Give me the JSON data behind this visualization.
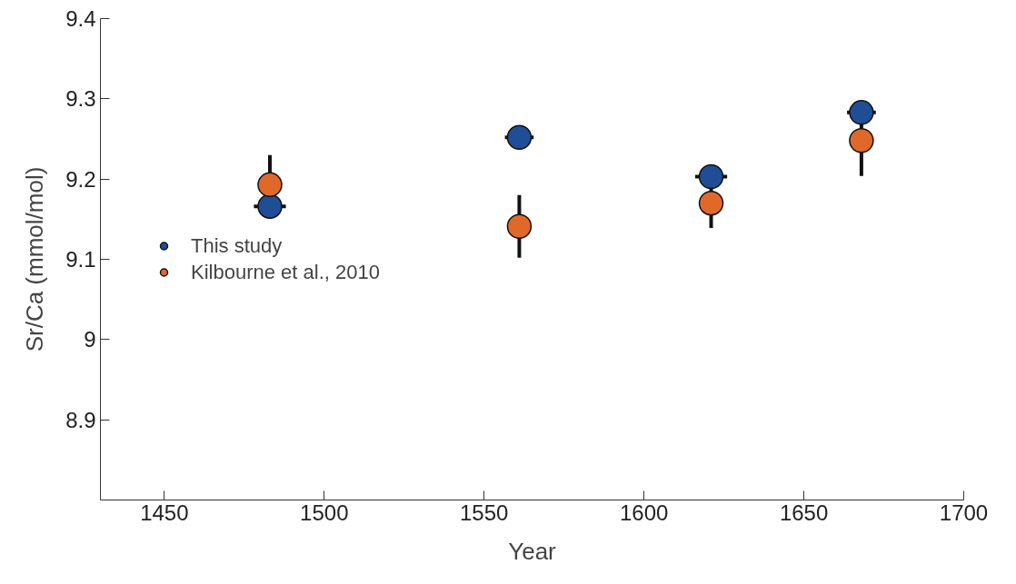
{
  "chart_data": {
    "type": "scatter",
    "xlabel": "Year",
    "ylabel": "Sr/Ca (mmol/mol)",
    "xlim": [
      1430,
      1700
    ],
    "ylim": [
      8.8,
      9.4
    ],
    "xticks": [
      1450,
      1500,
      1550,
      1600,
      1650,
      1700
    ],
    "yticks": [
      8.9,
      9.1,
      9.2,
      9.3,
      9.4,
      {
        "value": 9.0,
        "label": "9"
      }
    ],
    "grid": false,
    "legend": "left",
    "marker": "circle",
    "series": [
      {
        "name": "This study",
        "color": "#1f4e96",
        "x": [
          1483,
          1561,
          1621,
          1668
        ],
        "values": [
          9.166,
          9.252,
          9.203,
          9.283
        ],
        "xerrors": [
          5,
          4.5,
          5,
          4.5
        ]
      },
      {
        "name": "Kilbourne et al., 2010",
        "color": "#e0692a",
        "x": [
          1483,
          1561,
          1621,
          1668
        ],
        "values": [
          9.193,
          9.141,
          9.17,
          9.248
        ],
        "errors": [
          0.037,
          0.039,
          0.031,
          0.044
        ]
      }
    ]
  }
}
